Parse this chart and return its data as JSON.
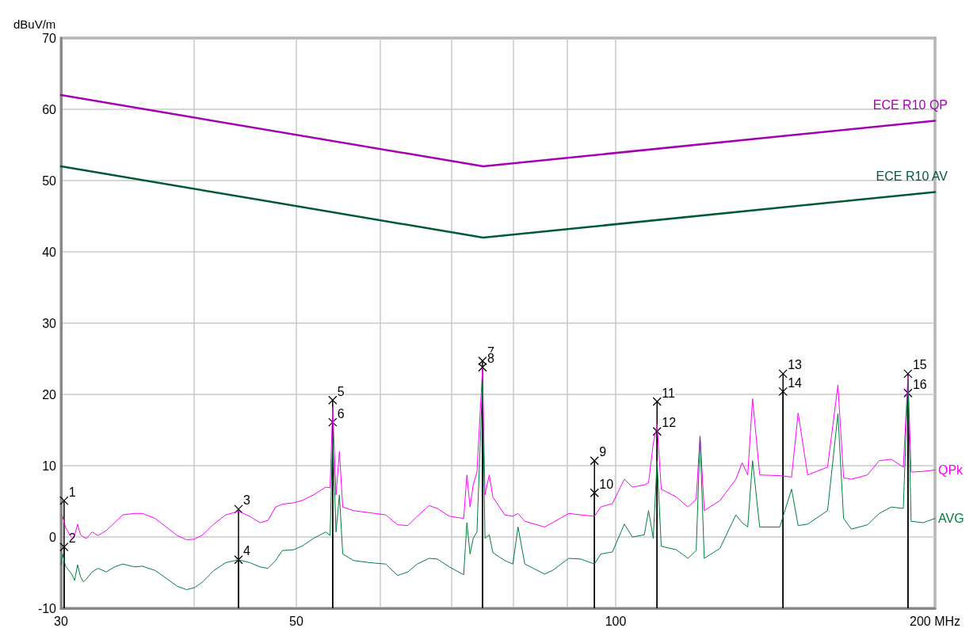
{
  "chart_data": {
    "type": "line",
    "ylabel": "dBuV/m",
    "xlim": [
      30,
      200
    ],
    "ylim": [
      -10,
      70
    ],
    "log": "x",
    "grid": true,
    "legend": false,
    "marker": "none",
    "line_style": "solid",
    "xticks": [
      30,
      {
        "value": 40,
        "label": null
      },
      50,
      {
        "value": 60,
        "label": null
      },
      {
        "value": 70,
        "label": null
      },
      {
        "value": 80,
        "label": null
      },
      {
        "value": 90,
        "label": null
      },
      100,
      {
        "value": 200,
        "label": "200 MHz"
      }
    ],
    "yticks": [
      -10,
      0,
      10,
      20,
      30,
      40,
      50,
      60,
      70
    ],
    "series": [
      {
        "name": "ECE R10 QP",
        "color": "#a400b4",
        "x": [
          30,
          75,
          200
        ],
        "values": [
          62,
          52,
          58.4
        ]
      },
      {
        "name": "ECE R10 AV",
        "color": "#005a32",
        "x": [
          30,
          75,
          200
        ],
        "values": [
          52,
          42,
          48.4
        ]
      },
      {
        "name": "QPk",
        "color": "#ff00ff",
        "x": [
          30.0,
          30.1,
          30.3,
          30.7,
          30.9,
          31.1,
          31.3,
          31.5,
          31.7,
          32.1,
          32.5,
          33.1,
          33.7,
          34.3,
          35.2,
          35.8,
          36.8,
          37.7,
          38.6,
          39.4,
          40.1,
          40.8,
          41.8,
          42.9,
          44.1,
          45.2,
          46.2,
          47.0,
          47.8,
          48.5,
          49.7,
          50.6,
          51.9,
          53.3,
          53.8,
          54.1,
          54.5,
          54.9,
          55.3,
          56.6,
          58.6,
          60.7,
          62.3,
          63.7,
          65.0,
          66.7,
          67.9,
          69.7,
          71.9,
          72.4,
          72.9,
          73.4,
          74.0,
          74.9,
          75.3,
          76.0,
          76.6,
          78.6,
          80.0,
          80.9,
          82.1,
          85.7,
          87.2,
          90.3,
          92.7,
          95.5,
          96.8,
          99.3,
          101.9,
          103.7,
          106.4,
          107.4,
          108.5,
          109.4,
          110.4,
          114.1,
          117.0,
          119.1,
          120.1,
          121.2,
          125.4,
          129.8,
          131.6,
          133.2,
          134.6,
          136.7,
          142.8,
          146.5,
          148.6,
          151.7,
          158.4,
          162.0,
          164.0,
          166.8,
          172.7,
          177.2,
          181.9,
          186.7,
          188.6,
          189.9,
          194.9,
          200.0
        ],
        "values": [
          3.1,
          2.9,
          1.3,
          -0.1,
          0.2,
          1.8,
          0.3,
          0.0,
          -0.2,
          0.7,
          0.2,
          0.9,
          2.0,
          3.1,
          3.3,
          3.3,
          2.6,
          1.4,
          0.2,
          -0.4,
          -0.3,
          0.3,
          1.8,
          3.1,
          3.6,
          2.9,
          2.0,
          2.3,
          4.2,
          4.6,
          4.8,
          5.1,
          5.9,
          7.0,
          6.9,
          18.2,
          5.9,
          12.0,
          4.2,
          3.7,
          3.4,
          3.1,
          1.7,
          1.6,
          2.9,
          4.4,
          4.0,
          2.9,
          2.6,
          8.7,
          4.2,
          7.3,
          9.1,
          23.7,
          5.9,
          8.7,
          5.6,
          3.1,
          2.9,
          3.3,
          2.2,
          1.4,
          2.0,
          3.3,
          3.1,
          2.9,
          4.2,
          4.7,
          8.1,
          7.0,
          7.3,
          7.6,
          13.1,
          15.8,
          6.7,
          5.6,
          4.2,
          5.3,
          14.2,
          3.7,
          5.1,
          8.1,
          10.4,
          8.7,
          19.4,
          8.7,
          8.6,
          8.4,
          17.4,
          8.7,
          9.8,
          21.3,
          8.3,
          8.1,
          8.7,
          10.7,
          10.9,
          9.8,
          22.6,
          9.1,
          9.2,
          9.4
        ]
      },
      {
        "name": "AVG",
        "color": "#00803c",
        "x": [
          30.0,
          30.1,
          30.3,
          30.7,
          30.9,
          31.1,
          31.3,
          31.5,
          31.7,
          32.1,
          32.5,
          33.1,
          33.7,
          34.3,
          35.2,
          35.8,
          36.8,
          37.7,
          38.6,
          39.4,
          40.1,
          40.8,
          41.8,
          42.9,
          44.1,
          45.2,
          46.2,
          47.0,
          47.8,
          48.5,
          49.7,
          50.6,
          51.9,
          53.3,
          53.8,
          54.1,
          54.5,
          54.9,
          55.3,
          56.6,
          58.6,
          60.7,
          62.3,
          63.7,
          65.0,
          66.7,
          67.9,
          69.7,
          71.9,
          72.4,
          72.9,
          73.4,
          74.0,
          74.9,
          75.3,
          76.0,
          76.6,
          78.6,
          80.0,
          80.9,
          82.1,
          85.7,
          87.2,
          90.3,
          92.7,
          95.5,
          96.8,
          99.3,
          101.9,
          103.7,
          106.4,
          107.4,
          108.5,
          109.4,
          110.4,
          114.1,
          117.0,
          119.1,
          120.1,
          121.2,
          125.4,
          129.8,
          131.6,
          133.2,
          134.6,
          136.7,
          142.8,
          146.5,
          148.6,
          151.7,
          158.4,
          162.0,
          164.0,
          166.8,
          172.7,
          177.2,
          181.9,
          186.7,
          188.6,
          189.9,
          194.9,
          200.0
        ],
        "values": [
          -3.9,
          -2.4,
          -4.1,
          -5.2,
          -6.1,
          -3.9,
          -5.6,
          -6.3,
          -5.9,
          -4.9,
          -4.4,
          -4.9,
          -4.2,
          -3.8,
          -4.2,
          -4.1,
          -4.7,
          -5.8,
          -6.9,
          -7.4,
          -7.1,
          -6.3,
          -4.7,
          -3.6,
          -3.2,
          -3.6,
          -4.2,
          -4.4,
          -3.3,
          -1.9,
          -1.8,
          -1.3,
          -0.2,
          0.7,
          0.2,
          14.4,
          0.7,
          5.9,
          -2.4,
          -3.3,
          -3.6,
          -3.8,
          -5.4,
          -4.9,
          -3.8,
          -3.0,
          -3.1,
          -4.2,
          -5.3,
          2.0,
          -2.4,
          -0.2,
          0.7,
          21.8,
          -0.2,
          0.3,
          -2.2,
          -3.3,
          -3.8,
          1.4,
          -3.8,
          -5.2,
          -4.7,
          -3.0,
          -3.1,
          -3.8,
          -2.4,
          -2.1,
          1.8,
          0.0,
          0.3,
          3.7,
          -0.2,
          10.7,
          -1.3,
          -1.8,
          -3.0,
          -1.9,
          14.0,
          -3.0,
          -1.6,
          3.1,
          2.0,
          1.4,
          10.7,
          1.4,
          1.4,
          6.7,
          1.6,
          1.8,
          3.7,
          17.3,
          2.6,
          1.1,
          1.7,
          3.3,
          4.2,
          4.0,
          22.0,
          2.2,
          2.0,
          2.6
        ]
      }
    ],
    "annotations": [
      {
        "text": "1",
        "x": 30.2,
        "y": 5.1
      },
      {
        "text": "2",
        "x": 30.2,
        "y": -1.4
      },
      {
        "text": "3",
        "x": 44.1,
        "y": 3.9
      },
      {
        "text": "4",
        "x": 44.1,
        "y": -3.2
      },
      {
        "text": "5",
        "x": 54.1,
        "y": 19.2
      },
      {
        "text": "6",
        "x": 54.1,
        "y": 16.1
      },
      {
        "text": "7",
        "x": 74.9,
        "y": 24.7
      },
      {
        "text": "8",
        "x": 74.9,
        "y": 23.8
      },
      {
        "text": "9",
        "x": 95.5,
        "y": 10.7
      },
      {
        "text": "10",
        "x": 95.5,
        "y": 6.2
      },
      {
        "text": "11",
        "x": 109.4,
        "y": 19.0
      },
      {
        "text": "12",
        "x": 109.4,
        "y": 14.8
      },
      {
        "text": "13",
        "x": 143.8,
        "y": 22.9
      },
      {
        "text": "14",
        "x": 143.8,
        "y": 20.4
      },
      {
        "text": "15",
        "x": 188.6,
        "y": 22.9
      },
      {
        "text": "16",
        "x": 188.6,
        "y": 20.2
      }
    ]
  }
}
